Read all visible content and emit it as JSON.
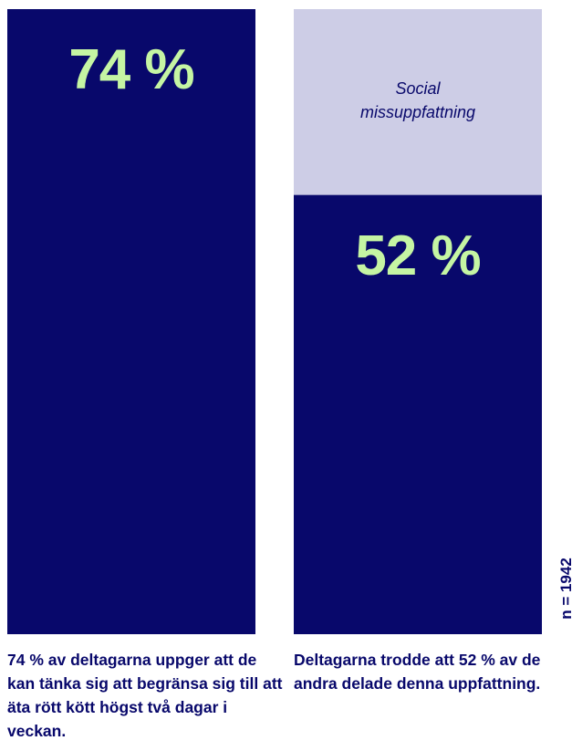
{
  "chart_data": {
    "type": "bar",
    "categories": [
      "74 % av deltagarna uppger att de kan tänka sig att begränsa sig till att äta rött kött högst två dagar i veckan.",
      "Deltagarna trodde att 52 % av de andra delade denna uppfattning."
    ],
    "values": [
      74,
      52
    ],
    "value_labels": [
      "74 %",
      "52 %"
    ],
    "color": "#08086b",
    "label_color": "#c5f5a3",
    "annotation": "Social missuppfattning",
    "annotation_color": "#cdcde6",
    "note": "n = 1942",
    "ylim": [
      0,
      74
    ]
  }
}
